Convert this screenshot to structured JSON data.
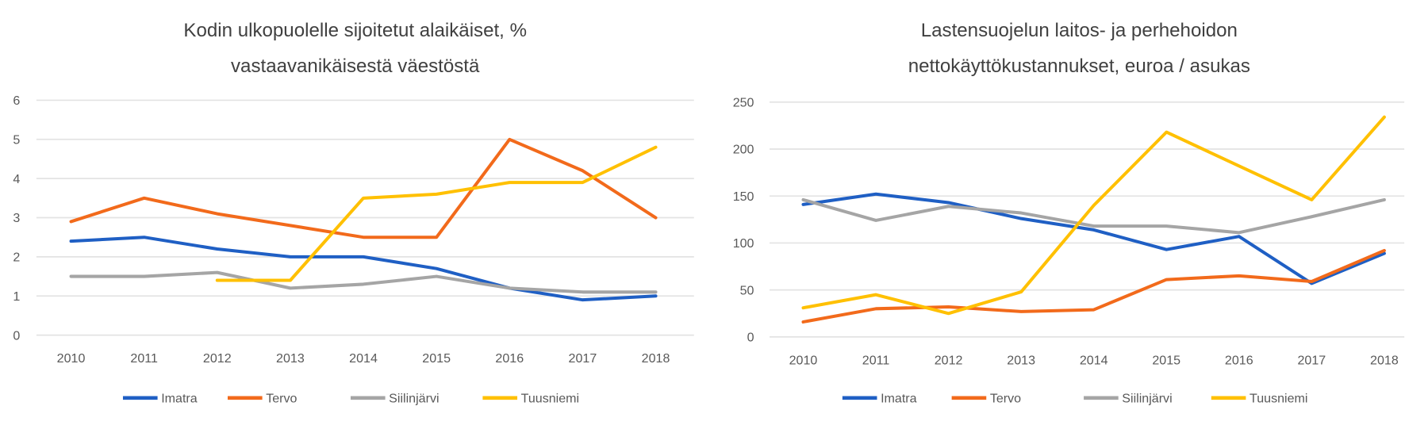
{
  "colors": {
    "Imatra": "#1f5fc4",
    "Tervo": "#f26a1b",
    "Siilinjärvi": "#a5a5a5",
    "Tuusniemi": "#ffc000"
  },
  "chart_data": [
    {
      "type": "line",
      "title": [
        "Kodin ulkopuolelle sijoitetut alaikäiset, %",
        "vastaavanikäisestä väestöstä"
      ],
      "categories": [
        "2010",
        "2011",
        "2012",
        "2013",
        "2014",
        "2015",
        "2016",
        "2017",
        "2018"
      ],
      "ylim": [
        0,
        6
      ],
      "yticks": [
        "0",
        "1",
        "2",
        "3",
        "4",
        "5",
        "6"
      ],
      "grid": true,
      "legend": "bottom",
      "series": [
        {
          "name": "Imatra",
          "values": [
            2.4,
            2.5,
            2.2,
            2.0,
            2.0,
            1.7,
            1.2,
            0.9,
            1.0
          ]
        },
        {
          "name": "Tervo",
          "values": [
            2.9,
            3.5,
            3.1,
            2.8,
            2.5,
            2.5,
            5.0,
            4.2,
            3.0
          ]
        },
        {
          "name": "Siilinjärvi",
          "values": [
            1.5,
            1.5,
            1.6,
            1.2,
            1.3,
            1.5,
            1.2,
            1.1,
            1.1
          ]
        },
        {
          "name": "Tuusniemi",
          "values": [
            null,
            null,
            1.4,
            1.4,
            3.5,
            3.6,
            3.9,
            3.9,
            4.8
          ]
        }
      ]
    },
    {
      "type": "line",
      "title": [
        "Lastensuojelun laitos- ja perhehoidon",
        "nettokäyttökustannukset, euroa / asukas"
      ],
      "categories": [
        "2010",
        "2011",
        "2012",
        "2013",
        "2014",
        "2015",
        "2016",
        "2017",
        "2018"
      ],
      "ylim": [
        0,
        250
      ],
      "yticks": [
        "0",
        "50",
        "100",
        "150",
        "200",
        "250"
      ],
      "grid": true,
      "legend": "bottom",
      "series": [
        {
          "name": "Imatra",
          "values": [
            141,
            152,
            143,
            126,
            114,
            93,
            107,
            57,
            89
          ]
        },
        {
          "name": "Tervo",
          "values": [
            16,
            30,
            32,
            27,
            29,
            61,
            65,
            59,
            92
          ]
        },
        {
          "name": "Siilinjärvi",
          "values": [
            146,
            124,
            139,
            132,
            118,
            118,
            111,
            128,
            146
          ]
        },
        {
          "name": "Tuusniemi",
          "values": [
            31,
            45,
            25,
            48,
            140,
            218,
            182,
            146,
            234
          ]
        }
      ]
    }
  ]
}
